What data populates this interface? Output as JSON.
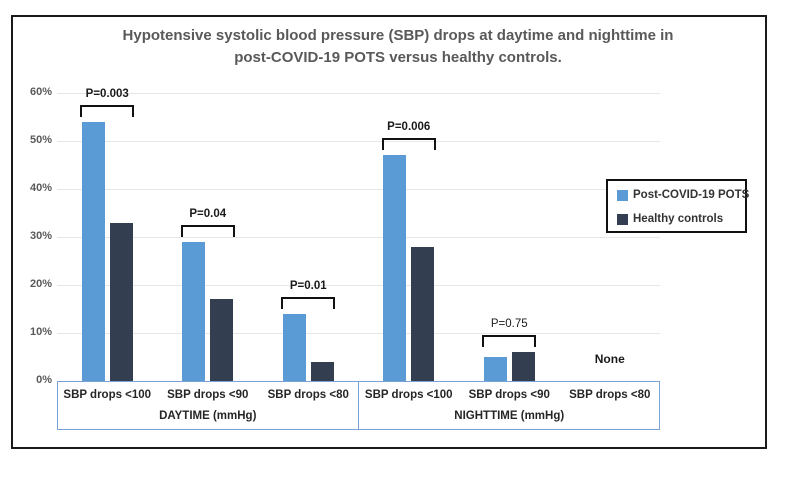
{
  "title": {
    "line1": "Hypotensive systolic blood pressure (SBP) drops at daytime and nighttime in",
    "line2": "post-COVID-19 POTS versus healthy controls."
  },
  "y_axis": {
    "tick_labels": [
      "0%",
      "10%",
      "20%",
      "30%",
      "40%",
      "50%",
      "60%"
    ],
    "min": 0,
    "max": 60
  },
  "legend": {
    "items": [
      {
        "label": "Post-COVID-19 POTS",
        "color": "#5b9bd5"
      },
      {
        "label": "Healthy controls",
        "color": "#333f50"
      }
    ]
  },
  "colors": {
    "pots_blue": "#5b9bd5",
    "controls_navy": "#333f50",
    "gridline": "#e7e7e7",
    "axis_box_blue": "#7ba2d6",
    "text_gray": "#595959"
  },
  "chart_data": {
    "type": "bar",
    "title": "Hypotensive systolic blood pressure (SBP) drops at daytime and nighttime in post-COVID-19 POTS versus healthy controls.",
    "xlabel": "",
    "ylabel": "",
    "ylim": [
      0,
      60
    ],
    "y_tick_labels": [
      "0%",
      "10%",
      "20%",
      "30%",
      "40%",
      "50%",
      "60%"
    ],
    "grid": true,
    "legend_position": "right",
    "series_names": [
      "Post-COVID-19 POTS",
      "Healthy controls"
    ],
    "groups": [
      {
        "label": "DAYTIME (mmHg)",
        "categories": [
          "SBP drops <100",
          "SBP drops <90",
          "SBP drops <80"
        ],
        "series": [
          {
            "name": "Post-COVID-19 POTS",
            "values": [
              54,
              29,
              14
            ]
          },
          {
            "name": "Healthy controls",
            "values": [
              33,
              17,
              4
            ]
          }
        ],
        "p_values": [
          {
            "text": "P=0.003",
            "bold": true
          },
          {
            "text": "P=0.04",
            "bold": true
          },
          {
            "text": "P=0.01",
            "bold": true
          }
        ],
        "annotations": [
          null,
          null,
          null
        ]
      },
      {
        "label": "NIGHTTIME (mmHg)",
        "categories": [
          "SBP drops <100",
          "SBP drops <90",
          "SBP drops <80"
        ],
        "series": [
          {
            "name": "Post-COVID-19 POTS",
            "values": [
              47,
              5,
              null
            ]
          },
          {
            "name": "Healthy controls",
            "values": [
              28,
              6,
              null
            ]
          }
        ],
        "p_values": [
          {
            "text": "P=0.006",
            "bold": true
          },
          {
            "text": "P=0.75",
            "bold": false
          },
          null
        ],
        "annotations": [
          null,
          null,
          "None"
        ]
      }
    ]
  }
}
